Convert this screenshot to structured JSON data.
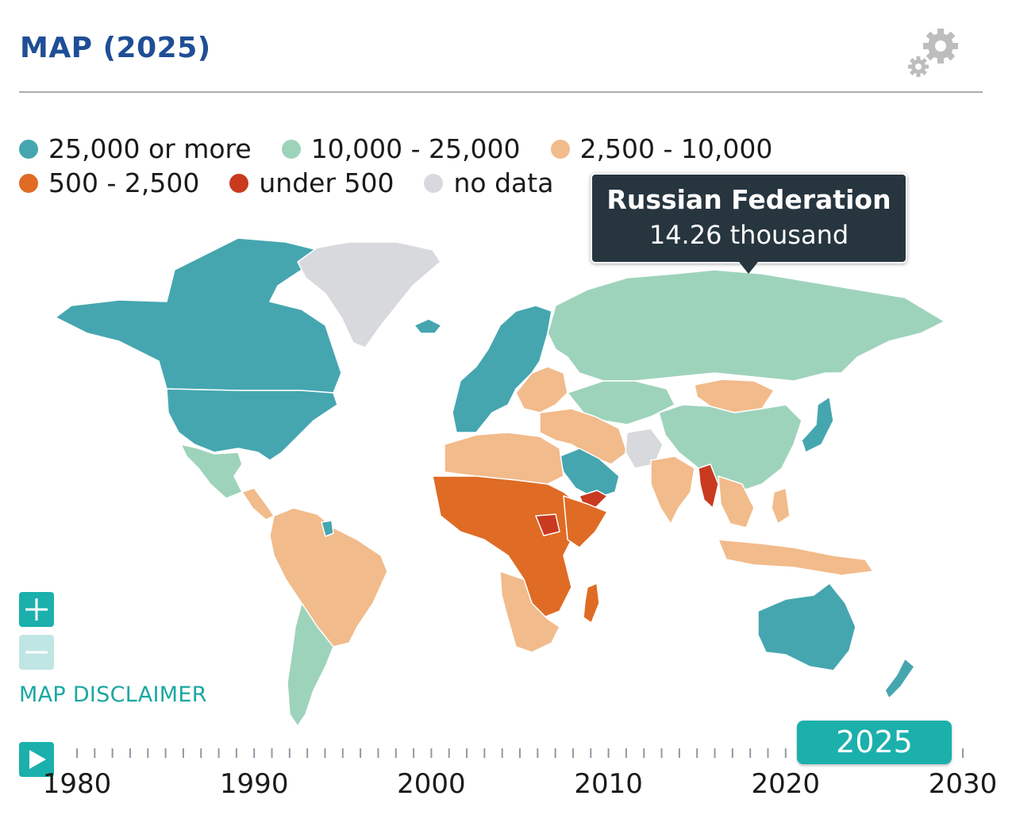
{
  "header": {
    "title": "MAP (2025)"
  },
  "legend": [
    {
      "label": "25,000 or more",
      "color": "#45a6b0"
    },
    {
      "label": "10,000 - 25,000",
      "color": "#9ed3bb"
    },
    {
      "label": "2,500 - 10,000",
      "color": "#f2bb8b"
    },
    {
      "label": "500 - 2,500",
      "color": "#df6b25"
    },
    {
      "label": "under 500",
      "color": "#c93a1f"
    },
    {
      "label": "no data",
      "color": "#d8d9dd"
    }
  ],
  "tooltip": {
    "country": "Russian Federation",
    "value": "14.26 thousand"
  },
  "controls": {
    "zoom_in_icon": "plus-icon",
    "zoom_out_icon": "minus-icon",
    "disclaimer": "MAP DISCLAIMER",
    "play_icon": "play-icon",
    "settings_icon": "gears-icon"
  },
  "timeline": {
    "year_labels": [
      "1980",
      "1990",
      "2000",
      "2010",
      "2020",
      "2030"
    ],
    "start": 1980,
    "end": 2030,
    "selected_year": "2025"
  }
}
